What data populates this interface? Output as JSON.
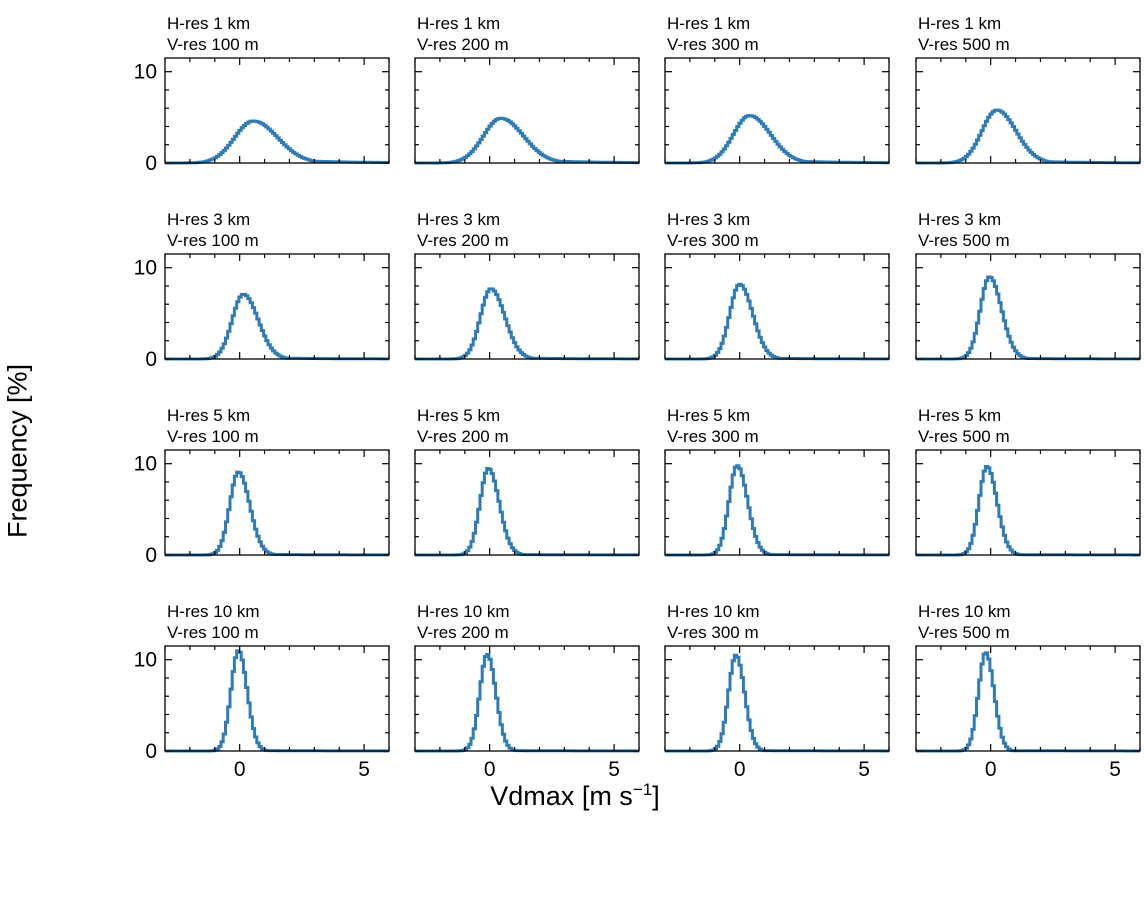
{
  "figure": {
    "ylabel": "Frequency [%]",
    "xlabel_main": "Vdmax [m s",
    "xlabel_sup": "−1",
    "xlabel_end": "]"
  },
  "colors": {
    "line": "#2f7bb6",
    "axes": "#000000"
  },
  "chart_data": [
    {
      "type": "line",
      "row": 0,
      "col": 0,
      "title_line1": "H-res 1 km",
      "title_line2": "V-res 100 m",
      "xlim": [
        -3,
        6
      ],
      "ylim": [
        0,
        11.5
      ],
      "xticks": [
        0,
        5
      ],
      "yticks": [
        0,
        10
      ],
      "peak_x": 0.55,
      "peak_y": 4.6,
      "left_width": 0.75,
      "right_width": 1.4,
      "tail": 0.6
    },
    {
      "type": "line",
      "row": 0,
      "col": 1,
      "title_line1": "H-res 1 km",
      "title_line2": "V-res 200 m",
      "xlim": [
        -3,
        6
      ],
      "ylim": [
        0,
        11.5
      ],
      "xticks": [
        0,
        5
      ],
      "yticks": [
        0,
        10
      ],
      "peak_x": 0.45,
      "peak_y": 4.9,
      "left_width": 0.7,
      "right_width": 1.3,
      "tail": 0.55
    },
    {
      "type": "line",
      "row": 0,
      "col": 2,
      "title_line1": "H-res 1 km",
      "title_line2": "V-res 300 m",
      "xlim": [
        -3,
        6
      ],
      "ylim": [
        0,
        11.5
      ],
      "xticks": [
        0,
        5
      ],
      "yticks": [
        0,
        10
      ],
      "peak_x": 0.4,
      "peak_y": 5.2,
      "left_width": 0.65,
      "right_width": 1.2,
      "tail": 0.45
    },
    {
      "type": "line",
      "row": 0,
      "col": 3,
      "title_line1": "H-res 1 km",
      "title_line2": "V-res 500 m",
      "xlim": [
        -3,
        6
      ],
      "ylim": [
        0,
        11.5
      ],
      "xticks": [
        0,
        5
      ],
      "yticks": [
        0,
        10
      ],
      "peak_x": 0.25,
      "peak_y": 5.8,
      "left_width": 0.6,
      "right_width": 1.1,
      "tail": 0.35
    },
    {
      "type": "line",
      "row": 1,
      "col": 0,
      "title_line1": "H-res 3 km",
      "title_line2": "V-res 100 m",
      "xlim": [
        -3,
        6
      ],
      "ylim": [
        0,
        11.5
      ],
      "xticks": [
        0,
        5
      ],
      "yticks": [
        0,
        10
      ],
      "peak_x": 0.15,
      "peak_y": 7.1,
      "left_width": 0.45,
      "right_width": 0.85,
      "tail": 0.2
    },
    {
      "type": "line",
      "row": 1,
      "col": 1,
      "title_line1": "H-res 3 km",
      "title_line2": "V-res 200 m",
      "xlim": [
        -3,
        6
      ],
      "ylim": [
        0,
        11.5
      ],
      "xticks": [
        0,
        5
      ],
      "yticks": [
        0,
        10
      ],
      "peak_x": 0.05,
      "peak_y": 7.7,
      "left_width": 0.42,
      "right_width": 0.8,
      "tail": 0.18
    },
    {
      "type": "line",
      "row": 1,
      "col": 2,
      "title_line1": "H-res 3 km",
      "title_line2": "V-res 300 m",
      "xlim": [
        -3,
        6
      ],
      "ylim": [
        0,
        11.5
      ],
      "xticks": [
        0,
        5
      ],
      "yticks": [
        0,
        10
      ],
      "peak_x": 0.0,
      "peak_y": 8.2,
      "left_width": 0.4,
      "right_width": 0.75,
      "tail": 0.15
    },
    {
      "type": "line",
      "row": 1,
      "col": 3,
      "title_line1": "H-res 3 km",
      "title_line2": "V-res 500 m",
      "xlim": [
        -3,
        6
      ],
      "ylim": [
        0,
        11.5
      ],
      "xticks": [
        0,
        5
      ],
      "yticks": [
        0,
        10
      ],
      "peak_x": -0.05,
      "peak_y": 9.0,
      "left_width": 0.37,
      "right_width": 0.7,
      "tail": 0.12
    },
    {
      "type": "line",
      "row": 2,
      "col": 0,
      "title_line1": "H-res 5 km",
      "title_line2": "V-res 100 m",
      "xlim": [
        -3,
        6
      ],
      "ylim": [
        0,
        11.5
      ],
      "xticks": [
        0,
        5
      ],
      "yticks": [
        0,
        10
      ],
      "peak_x": -0.05,
      "peak_y": 9.1,
      "left_width": 0.35,
      "right_width": 0.65,
      "tail": 0.12
    },
    {
      "type": "line",
      "row": 2,
      "col": 1,
      "title_line1": "H-res 5 km",
      "title_line2": "V-res 200 m",
      "xlim": [
        -3,
        6
      ],
      "ylim": [
        0,
        11.5
      ],
      "xticks": [
        0,
        5
      ],
      "yticks": [
        0,
        10
      ],
      "peak_x": -0.05,
      "peak_y": 9.5,
      "left_width": 0.34,
      "right_width": 0.62,
      "tail": 0.1
    },
    {
      "type": "line",
      "row": 2,
      "col": 2,
      "title_line1": "H-res 5 km",
      "title_line2": "V-res 300 m",
      "xlim": [
        -3,
        6
      ],
      "ylim": [
        0,
        11.5
      ],
      "xticks": [
        0,
        5
      ],
      "yticks": [
        0,
        10
      ],
      "peak_x": -0.1,
      "peak_y": 9.8,
      "left_width": 0.33,
      "right_width": 0.6,
      "tail": 0.1
    },
    {
      "type": "line",
      "row": 2,
      "col": 3,
      "title_line1": "H-res 5 km",
      "title_line2": "V-res 500 m",
      "xlim": [
        -3,
        6
      ],
      "ylim": [
        0,
        11.5
      ],
      "xticks": [
        0,
        5
      ],
      "yticks": [
        0,
        10
      ],
      "peak_x": -0.15,
      "peak_y": 9.7,
      "left_width": 0.32,
      "right_width": 0.58,
      "tail": 0.08
    },
    {
      "type": "line",
      "row": 3,
      "col": 0,
      "title_line1": "H-res 10 km",
      "title_line2": "V-res 100 m",
      "xlim": [
        -3,
        6
      ],
      "ylim": [
        0,
        11.5
      ],
      "xticks": [
        0,
        5
      ],
      "yticks": [
        0,
        10
      ],
      "peak_x": -0.05,
      "peak_y": 11.0,
      "left_width": 0.3,
      "right_width": 0.5,
      "tail": 0.08
    },
    {
      "type": "line",
      "row": 3,
      "col": 1,
      "title_line1": "H-res 10 km",
      "title_line2": "V-res 200 m",
      "xlim": [
        -3,
        6
      ],
      "ylim": [
        0,
        11.5
      ],
      "xticks": [
        0,
        5
      ],
      "yticks": [
        0,
        10
      ],
      "peak_x": -0.1,
      "peak_y": 10.6,
      "left_width": 0.3,
      "right_width": 0.5,
      "tail": 0.08
    },
    {
      "type": "line",
      "row": 3,
      "col": 2,
      "title_line1": "H-res 10 km",
      "title_line2": "V-res 300 m",
      "xlim": [
        -3,
        6
      ],
      "ylim": [
        0,
        11.5
      ],
      "xticks": [
        0,
        5
      ],
      "yticks": [
        0,
        10
      ],
      "peak_x": -0.15,
      "peak_y": 10.5,
      "left_width": 0.3,
      "right_width": 0.5,
      "tail": 0.08
    },
    {
      "type": "line",
      "row": 3,
      "col": 3,
      "title_line1": "H-res 10 km",
      "title_line2": "V-res 500 m",
      "xlim": [
        -3,
        6
      ],
      "ylim": [
        0,
        11.5
      ],
      "xticks": [
        0,
        5
      ],
      "yticks": [
        0,
        10
      ],
      "peak_x": -0.2,
      "peak_y": 10.8,
      "left_width": 0.29,
      "right_width": 0.48,
      "tail": 0.07
    }
  ]
}
